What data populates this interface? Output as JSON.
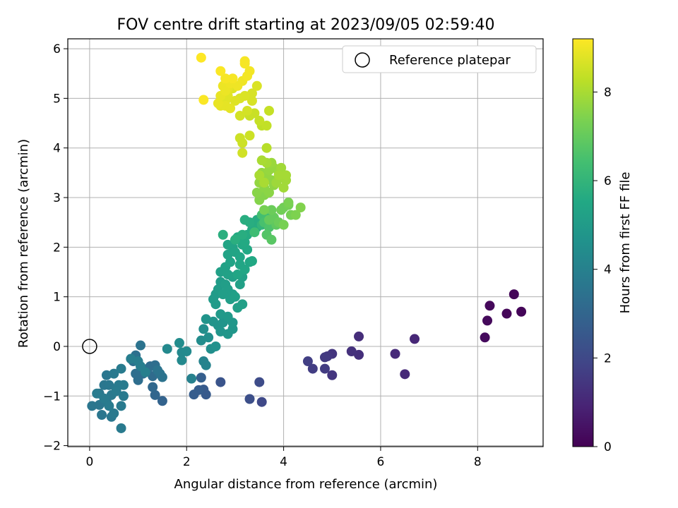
{
  "chart_data": {
    "type": "scatter",
    "title": "FOV centre drift starting at 2023/09/05 02:59:40",
    "xlabel": "Angular distance from reference (arcmin)",
    "ylabel": "Rotation from reference (arcmin)",
    "xlim": [
      -0.45,
      9.35
    ],
    "ylim": [
      -2.02,
      6.2
    ],
    "xticks": [
      0,
      2,
      4,
      6,
      8
    ],
    "yticks": [
      -2,
      -1,
      0,
      1,
      2,
      3,
      4,
      5,
      6
    ],
    "grid": true,
    "legend": {
      "position": "top-right",
      "entries": [
        "Reference platepar"
      ]
    },
    "reference_point": {
      "x": 0,
      "y": 0
    },
    "colorbar": {
      "label": "Hours from first FF file",
      "min": 0,
      "max": 9.2,
      "ticks": [
        0,
        2,
        4,
        6,
        8
      ],
      "colormap": "viridis"
    },
    "series": [
      {
        "points": [
          [
            8.75,
            1.05,
            0.1
          ],
          [
            8.9,
            0.7,
            0.1
          ],
          [
            8.6,
            0.66,
            0.15
          ],
          [
            8.25,
            0.82,
            0.2
          ],
          [
            8.2,
            0.52,
            0.2
          ],
          [
            8.15,
            0.18,
            0.25
          ],
          [
            6.7,
            0.15,
            1.0
          ],
          [
            6.3,
            -0.15,
            1.1
          ],
          [
            6.5,
            -0.56,
            1.1
          ],
          [
            5.55,
            0.2,
            1.2
          ],
          [
            5.55,
            -0.17,
            1.25
          ],
          [
            5.4,
            -0.1,
            1.3
          ],
          [
            5.0,
            -0.15,
            1.4
          ],
          [
            5.0,
            -0.58,
            1.45
          ],
          [
            4.9,
            -0.2,
            1.5
          ],
          [
            4.85,
            -0.22,
            1.55
          ],
          [
            4.85,
            -0.45,
            1.6
          ],
          [
            4.6,
            -0.45,
            1.65
          ],
          [
            4.5,
            -0.3,
            1.7
          ],
          [
            3.55,
            -1.12,
            2.0
          ],
          [
            3.5,
            -0.72,
            2.1
          ],
          [
            3.3,
            -1.06,
            2.2
          ],
          [
            2.7,
            -0.72,
            2.4
          ],
          [
            2.4,
            -0.97,
            2.6
          ],
          [
            2.35,
            -0.87,
            2.6
          ],
          [
            2.25,
            -0.88,
            2.7
          ],
          [
            2.3,
            -0.63,
            2.75
          ],
          [
            2.15,
            -0.97,
            2.7
          ],
          [
            1.5,
            -1.1,
            2.9
          ],
          [
            1.35,
            -0.98,
            3.0
          ],
          [
            1.3,
            -0.82,
            3.1
          ],
          [
            1.3,
            -0.6,
            3.2
          ],
          [
            1.25,
            -0.4,
            3.2
          ],
          [
            1.35,
            -0.38,
            3.3
          ],
          [
            1.2,
            -0.45,
            3.3
          ],
          [
            1.1,
            -0.55,
            3.3
          ],
          [
            1.0,
            -0.68,
            3.3
          ],
          [
            0.95,
            -0.55,
            3.3
          ],
          [
            0.95,
            -0.22,
            3.4
          ],
          [
            0.9,
            -0.3,
            3.4
          ],
          [
            0.95,
            -0.18,
            3.4
          ],
          [
            1.05,
            0.02,
            3.5
          ],
          [
            1.45,
            -0.55,
            3.5
          ],
          [
            1.5,
            -0.62,
            3.5
          ],
          [
            1.4,
            -0.48,
            3.55
          ],
          [
            0.05,
            -1.2,
            3.6
          ],
          [
            0.2,
            -1.18,
            3.6
          ],
          [
            0.25,
            -1.38,
            3.6
          ],
          [
            0.2,
            -0.95,
            3.6
          ],
          [
            0.3,
            -0.78,
            3.6
          ],
          [
            0.35,
            -0.58,
            3.6
          ],
          [
            0.4,
            -0.78,
            3.65
          ],
          [
            0.35,
            -1.12,
            3.65
          ],
          [
            0.45,
            -1.42,
            3.65
          ],
          [
            0.5,
            -1.35,
            3.7
          ],
          [
            0.45,
            -0.98,
            3.7
          ],
          [
            0.5,
            -0.55,
            3.7
          ],
          [
            0.55,
            -0.85,
            3.7
          ],
          [
            0.6,
            -0.78,
            3.75
          ],
          [
            0.65,
            -1.2,
            3.75
          ],
          [
            0.65,
            -1.65,
            3.75
          ],
          [
            0.7,
            -1.0,
            3.75
          ],
          [
            0.7,
            -0.78,
            3.8
          ],
          [
            0.65,
            -0.45,
            3.8
          ],
          [
            0.55,
            -0.9,
            3.8
          ],
          [
            0.4,
            -1.2,
            3.8
          ],
          [
            0.3,
            -1.05,
            3.8
          ],
          [
            0.15,
            -0.95,
            3.8
          ],
          [
            0.85,
            -0.25,
            3.9
          ],
          [
            1.0,
            -0.3,
            3.9
          ],
          [
            1.05,
            -0.4,
            3.9
          ],
          [
            1.15,
            -0.52,
            3.95
          ],
          [
            2.1,
            -0.65,
            4.0
          ],
          [
            2.35,
            -0.3,
            4.1
          ],
          [
            2.4,
            -0.38,
            4.1
          ],
          [
            1.6,
            -0.05,
            4.3
          ],
          [
            1.9,
            -0.12,
            4.3
          ],
          [
            1.9,
            -0.28,
            4.3
          ],
          [
            2.0,
            -0.1,
            4.35
          ],
          [
            1.85,
            0.07,
            4.4
          ],
          [
            2.3,
            0.12,
            4.4
          ],
          [
            2.35,
            0.35,
            4.5
          ],
          [
            2.45,
            0.18,
            4.5
          ],
          [
            2.5,
            -0.05,
            4.5
          ],
          [
            2.6,
            0.0,
            4.6
          ],
          [
            2.4,
            0.55,
            4.7
          ],
          [
            2.55,
            0.5,
            4.7
          ],
          [
            2.65,
            0.42,
            4.7
          ],
          [
            2.75,
            0.48,
            4.75
          ],
          [
            2.7,
            0.3,
            4.75
          ],
          [
            2.85,
            0.25,
            4.8
          ],
          [
            2.95,
            0.35,
            4.8
          ],
          [
            2.95,
            0.48,
            4.85
          ],
          [
            2.85,
            0.6,
            4.9
          ],
          [
            2.7,
            0.65,
            4.9
          ],
          [
            2.6,
            0.85,
            4.95
          ],
          [
            2.55,
            0.95,
            5.0
          ],
          [
            2.6,
            1.05,
            5.0
          ],
          [
            2.65,
            1.15,
            5.05
          ],
          [
            2.7,
            1.3,
            5.05
          ],
          [
            2.8,
            1.25,
            5.1
          ],
          [
            2.85,
            1.15,
            5.1
          ],
          [
            2.95,
            1.05,
            5.1
          ],
          [
            2.75,
            1.05,
            5.1
          ],
          [
            2.9,
            0.95,
            5.1
          ],
          [
            3.05,
            0.78,
            5.15
          ],
          [
            3.15,
            0.85,
            5.15
          ],
          [
            3.0,
            1.0,
            5.2
          ],
          [
            3.1,
            1.25,
            5.2
          ],
          [
            3.15,
            1.4,
            5.2
          ],
          [
            2.95,
            1.4,
            5.2
          ],
          [
            2.7,
            1.5,
            5.2
          ],
          [
            2.85,
            1.45,
            5.25
          ],
          [
            2.8,
            1.6,
            5.25
          ],
          [
            2.9,
            1.7,
            5.3
          ],
          [
            2.85,
            1.85,
            5.3
          ],
          [
            2.95,
            2.0,
            5.3
          ],
          [
            2.85,
            2.05,
            5.35
          ],
          [
            3.0,
            1.9,
            5.35
          ],
          [
            3.1,
            1.8,
            5.4
          ],
          [
            3.1,
            1.65,
            5.4
          ],
          [
            3.05,
            1.45,
            5.4
          ],
          [
            3.2,
            1.55,
            5.45
          ],
          [
            3.3,
            1.7,
            5.45
          ],
          [
            3.35,
            1.72,
            5.5
          ],
          [
            3.25,
            1.95,
            5.5
          ],
          [
            3.15,
            2.05,
            5.5
          ],
          [
            3.05,
            2.2,
            5.55
          ],
          [
            3.2,
            2.1,
            5.55
          ],
          [
            3.25,
            2.25,
            5.6
          ],
          [
            3.35,
            2.35,
            5.6
          ],
          [
            3.45,
            2.4,
            5.65
          ],
          [
            3.45,
            2.55,
            5.65
          ],
          [
            3.3,
            2.5,
            5.7
          ],
          [
            3.2,
            2.55,
            5.7
          ],
          [
            3.15,
            2.25,
            5.7
          ],
          [
            2.75,
            2.25,
            5.75
          ],
          [
            3.0,
            2.15,
            5.75
          ],
          [
            3.55,
            2.45,
            6.0
          ],
          [
            3.65,
            2.6,
            6.3
          ],
          [
            3.55,
            2.65,
            6.4
          ],
          [
            3.6,
            2.5,
            6.5
          ],
          [
            3.4,
            2.3,
            6.3
          ],
          [
            3.7,
            2.4,
            6.6
          ],
          [
            3.65,
            2.25,
            6.7
          ],
          [
            3.75,
            2.15,
            6.8
          ],
          [
            3.85,
            2.45,
            6.9
          ],
          [
            3.7,
            2.55,
            7.0
          ],
          [
            3.8,
            2.6,
            7.0
          ],
          [
            3.9,
            2.5,
            7.1
          ],
          [
            3.75,
            2.75,
            7.1
          ],
          [
            3.95,
            2.75,
            7.2
          ],
          [
            4.0,
            2.8,
            7.2
          ],
          [
            4.1,
            2.85,
            7.25
          ],
          [
            4.0,
            2.45,
            7.3
          ],
          [
            4.15,
            2.65,
            7.3
          ],
          [
            4.1,
            2.9,
            7.35
          ],
          [
            4.25,
            2.65,
            7.4
          ],
          [
            4.35,
            2.8,
            7.45
          ],
          [
            3.6,
            2.75,
            7.3
          ],
          [
            3.5,
            2.95,
            7.5
          ],
          [
            3.6,
            3.05,
            7.5
          ],
          [
            3.45,
            3.1,
            7.55
          ],
          [
            3.6,
            3.2,
            7.6
          ],
          [
            3.7,
            3.1,
            7.6
          ],
          [
            3.8,
            3.25,
            7.65
          ],
          [
            3.75,
            3.35,
            7.65
          ],
          [
            3.65,
            3.45,
            7.7
          ],
          [
            3.55,
            3.5,
            7.7
          ],
          [
            3.5,
            3.3,
            7.7
          ],
          [
            3.7,
            3.55,
            7.75
          ],
          [
            3.8,
            3.6,
            7.75
          ],
          [
            3.75,
            3.7,
            7.8
          ],
          [
            3.9,
            3.5,
            7.8
          ],
          [
            3.95,
            3.4,
            7.85
          ],
          [
            3.85,
            3.3,
            7.85
          ],
          [
            4.0,
            3.2,
            7.9
          ],
          [
            4.05,
            3.35,
            7.9
          ],
          [
            3.95,
            3.6,
            7.9
          ],
          [
            4.05,
            3.45,
            7.95
          ],
          [
            3.9,
            3.45,
            7.95
          ],
          [
            3.65,
            3.7,
            7.95
          ],
          [
            3.55,
            3.75,
            8.0
          ],
          [
            3.5,
            3.45,
            8.0
          ],
          [
            3.6,
            3.3,
            8.0
          ],
          [
            3.65,
            4.0,
            8.2
          ],
          [
            3.55,
            4.45,
            8.3
          ],
          [
            3.65,
            4.45,
            8.35
          ],
          [
            3.7,
            4.75,
            8.4
          ],
          [
            3.5,
            4.55,
            8.4
          ],
          [
            3.4,
            4.7,
            8.45
          ],
          [
            3.3,
            4.65,
            8.45
          ],
          [
            3.3,
            4.25,
            8.5
          ],
          [
            3.1,
            4.2,
            8.5
          ],
          [
            3.15,
            4.1,
            8.5
          ],
          [
            3.15,
            3.9,
            8.55
          ],
          [
            3.25,
            4.75,
            8.6
          ],
          [
            3.1,
            4.65,
            8.6
          ],
          [
            3.35,
            4.95,
            8.65
          ],
          [
            3.35,
            5.1,
            8.65
          ],
          [
            3.45,
            5.25,
            8.7
          ],
          [
            3.2,
            5.05,
            8.7
          ],
          [
            3.1,
            5.0,
            8.7
          ],
          [
            3.0,
            4.95,
            8.75
          ],
          [
            2.95,
            5.2,
            8.75
          ],
          [
            2.85,
            5.05,
            8.8
          ],
          [
            2.8,
            4.95,
            8.8
          ],
          [
            2.75,
            5.0,
            8.8
          ],
          [
            2.7,
            4.85,
            8.85
          ],
          [
            2.8,
            4.85,
            8.85
          ],
          [
            2.9,
            4.8,
            8.85
          ],
          [
            2.65,
            4.9,
            8.9
          ],
          [
            2.7,
            5.05,
            8.9
          ],
          [
            2.85,
            5.2,
            8.9
          ],
          [
            2.75,
            5.25,
            8.95
          ],
          [
            2.8,
            5.15,
            8.95
          ],
          [
            2.9,
            5.3,
            9.0
          ],
          [
            3.05,
            5.25,
            9.0
          ],
          [
            3.15,
            5.35,
            9.0
          ],
          [
            3.25,
            5.45,
            9.05
          ],
          [
            3.3,
            5.55,
            9.05
          ],
          [
            3.2,
            5.7,
            9.1
          ],
          [
            3.2,
            5.75,
            9.1
          ],
          [
            2.95,
            5.4,
            9.1
          ],
          [
            2.8,
            5.4,
            9.1
          ],
          [
            2.7,
            5.55,
            9.15
          ],
          [
            2.35,
            4.97,
            9.15
          ],
          [
            2.3,
            5.82,
            9.2
          ]
        ]
      }
    ]
  }
}
